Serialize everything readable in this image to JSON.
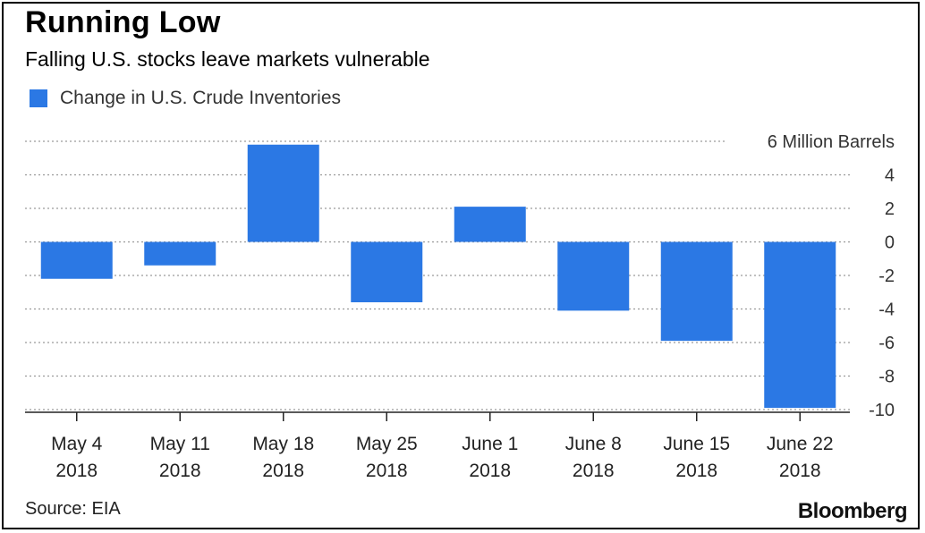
{
  "header": {
    "title": "Running Low",
    "subtitle": "Falling U.S. stocks leave markets vulnerable"
  },
  "legend": {
    "label": "Change in U.S. Crude Inventories",
    "color": "#2b78e4"
  },
  "footer": {
    "source": "Source: EIA",
    "brand": "Bloomberg"
  },
  "chart_data": {
    "type": "bar",
    "categories": [
      [
        "May 4",
        "2018"
      ],
      [
        "May 11",
        "2018"
      ],
      [
        "May 18",
        "2018"
      ],
      [
        "May 25",
        "2018"
      ],
      [
        "June 1",
        "2018"
      ],
      [
        "June 8",
        "2018"
      ],
      [
        "June 15",
        "2018"
      ],
      [
        "June 22",
        "2018"
      ]
    ],
    "series": [
      {
        "name": "Change in U.S. Crude Inventories",
        "values": [
          -2.2,
          -1.4,
          5.8,
          -3.6,
          2.1,
          -4.1,
          -5.9,
          -9.9
        ],
        "color": "#2b78e4"
      }
    ],
    "ylim": [
      -10,
      6
    ],
    "yticks": [
      6,
      4,
      2,
      0,
      -2,
      -4,
      -6,
      -8,
      -10
    ],
    "ytick_labels": [
      "6 Million Barrels",
      "4",
      "2",
      "0",
      "-2",
      "-4",
      "-6",
      "-8",
      "-10"
    ],
    "grid": true,
    "y_axis_side": "right",
    "legend_position": "top-left"
  }
}
